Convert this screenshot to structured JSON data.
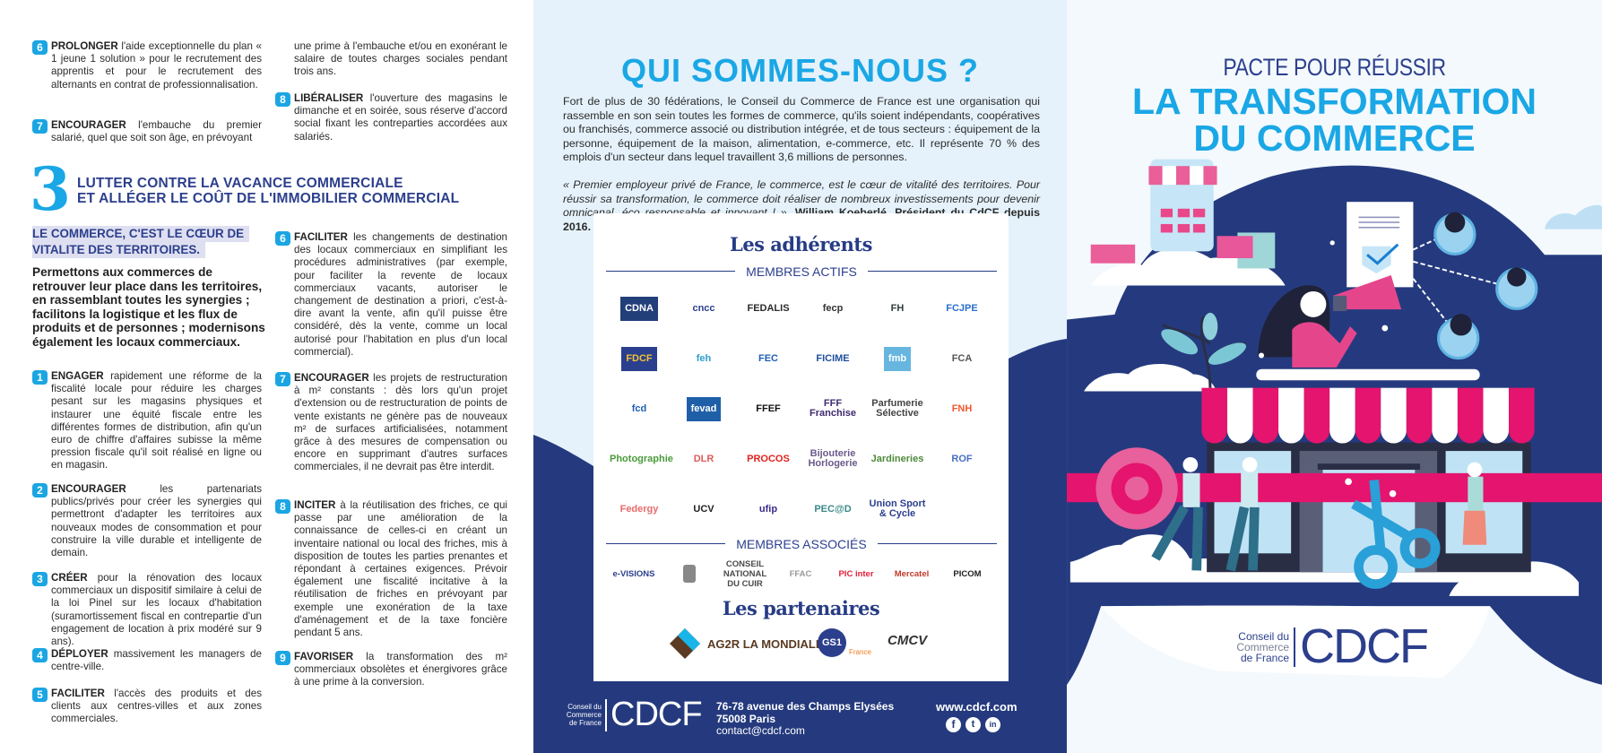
{
  "left_page": {
    "top_left_items": [
      {
        "num": "6",
        "verb": "PROLONGER",
        "text": "l'aide exceptionnelle du plan « 1 jeune 1 solution » pour le recrutement des apprentis et pour le recrutement des alternants en contrat de professionnalisation."
      },
      {
        "num": "7",
        "verb": "ENCOURAGER",
        "text": "l'embauche du premier salarié, quel que soit son âge, en prévoyant"
      }
    ],
    "top_right_continuation": "une prime à l'embauche et/ou en exonérant le salaire de toutes charges sociales pendant trois ans.",
    "top_right_items": [
      {
        "num": "8",
        "verb": "LIBÉRALISER",
        "text": "l'ouverture des magasins le dimanche et en soirée, sous réserve d'accord social fixant les contreparties accordées aux salariés."
      }
    ],
    "section3": {
      "number": "3",
      "title_line1": "LUTTER CONTRE LA VACANCE COMMERCIALE",
      "title_line2": "ET ALLÉGER LE COÛT DE L'IMMOBILIER COMMERCIAL",
      "highlight_line1": "LE COMMERCE, C'EST LE CŒUR DE",
      "highlight_line2": "VITALITE DES TERRITOIRES.",
      "lead": "Permettons aux commerces de retrouver leur place dans les territoires, en rassemblant toutes les synergies ; facilitons la logistique et les flux de produits et de personnes ; modernisons également les locaux commerciaux.",
      "left_items": [
        {
          "num": "1",
          "verb": "ENGAGER",
          "text": "rapidement une réforme de la fiscalité locale pour réduire les charges pesant sur les magasins physiques et instaurer une équité fiscale entre les différentes formes de distribution, afin qu'un euro de chiffre d'affaires subisse la même pression fiscale qu'il soit réalisé en ligne ou en magasin."
        },
        {
          "num": "2",
          "verb": "ENCOURAGER",
          "text": "les partenariats publics/privés pour créer les synergies qui permettront d'adapter les territoires aux nouveaux modes de consommation et pour construire la ville durable et intelligente de demain."
        },
        {
          "num": "3",
          "verb": "CRÉER",
          "text": "pour la rénovation des locaux commerciaux un dispositif similaire à celui de la loi Pinel sur les locaux d'habitation (suramortissement fiscal en contrepartie d'un engagement de location à prix modéré sur 9 ans)."
        },
        {
          "num": "4",
          "verb": "DÉPLOYER",
          "text": "massivement les managers de centre-ville."
        },
        {
          "num": "5",
          "verb": "FACILITER",
          "text": "l'accès des produits et des clients aux centres-villes et aux zones commerciales."
        }
      ],
      "right_items": [
        {
          "num": "6",
          "verb": "FACILITER",
          "text": "les changements de destination des locaux commerciaux en simplifiant les procédures administratives (par exemple, pour faciliter la revente de locaux commerciaux vacants, autoriser le changement de destination a priori, c'est-à-dire avant la vente, afin qu'il puisse être considéré, dès la vente, comme un local autorisé pour l'habitation en plus d'un local commercial)."
        },
        {
          "num": "7",
          "verb": "ENCOURAGER",
          "text": "les projets de restructuration à m² constants : dès lors qu'un projet d'extension ou de restructuration de points de vente existants ne génère pas de nouveaux m² de surfaces artificialisées, notamment grâce à des mesures de compensation ou encore en supprimant d'autres surfaces commerciales, il ne devrait pas être interdit."
        },
        {
          "num": "8",
          "verb": "INCITER",
          "text": "à la réutilisation des friches, ce qui passe par une amélioration de la connaissance de celles-ci en créant un inventaire national ou local des friches, mis à disposition de toutes les parties prenantes et répondant à certaines exigences. Prévoir également une fiscalité incitative à la réutilisation de friches en prévoyant par exemple une exonération de la taxe d'aménagement et de la taxe foncière pendant 5 ans."
        },
        {
          "num": "9",
          "verb": "FAVORISER",
          "text": "la transformation des m² commerciaux obsolètes et énergivores grâce à une prime à la conversion."
        }
      ]
    }
  },
  "middle": {
    "title": "QUI SOMMES-NOUS ?",
    "paragraph": "Fort de plus de 30 fédérations, le Conseil du Commerce de France est une organisation qui rassemble en son sein toutes les formes de commerce, qu'ils soient indépendants, coopératives ou franchisés, commerce associé ou distribution intégrée, et de tous secteurs : équipement de la personne, équipement de la maison, alimentation, e-commerce, etc. Il représente 70 % des emplois d'un secteur dans lequel travaillent 3,6 millions de personnes.",
    "quote": "« Premier employeur privé de France, le commerce, est le cœur de vitalité des territoires. Pour réussir sa transformation, le commerce doit réaliser de nombreux investissements pour devenir omnicanal, éco responsable et innovant ! »,",
    "quote_author": "William Koeberlé, Président du CdCF depuis 2016.",
    "members_title": "Les adhérents",
    "active_label": "MEMBRES ACTIFS",
    "active_members": [
      {
        "name": "CDNA",
        "color": "#ffffff",
        "bg": "#233f7a"
      },
      {
        "name": "cncc",
        "color": "#2c3f8d",
        "bg": ""
      },
      {
        "name": "FEDALIS",
        "color": "#2b2b2b",
        "bg": ""
      },
      {
        "name": "fecp",
        "color": "#333333",
        "bg": ""
      },
      {
        "name": "FH",
        "color": "#2d3e3e",
        "bg": ""
      },
      {
        "name": "FCJPE",
        "color": "#2a6fd1",
        "bg": ""
      },
      {
        "name": "FDCF",
        "color": "#f1c232",
        "bg": "#2b3f8f"
      },
      {
        "name": "feh",
        "color": "#2c9fcf",
        "bg": ""
      },
      {
        "name": "FEC",
        "color": "#1f5fb3",
        "bg": ""
      },
      {
        "name": "FICIME",
        "color": "#1f4f9b",
        "bg": ""
      },
      {
        "name": "fmb",
        "color": "#ffffff",
        "bg": "#67b6e0"
      },
      {
        "name": "FCA",
        "color": "#555555",
        "bg": ""
      },
      {
        "name": "fcd",
        "color": "#1f5fb3",
        "bg": ""
      },
      {
        "name": "fevad",
        "color": "#ffffff",
        "bg": "#1f5fa8"
      },
      {
        "name": "FFEF",
        "color": "#111111",
        "bg": ""
      },
      {
        "name": "FFF Franchise",
        "color": "#3d2a6d",
        "bg": ""
      },
      {
        "name": "Parfumerie Sélective",
        "color": "#444444",
        "bg": ""
      },
      {
        "name": "FNH",
        "color": "#f0562e",
        "bg": ""
      },
      {
        "name": "Photographie",
        "color": "#4a9a3a",
        "bg": ""
      },
      {
        "name": "DLR",
        "color": "#e05a5a",
        "bg": ""
      },
      {
        "name": "PROCOS",
        "color": "#e0231d",
        "bg": ""
      },
      {
        "name": "Bijouterie Horlogerie",
        "color": "#6a5a8a",
        "bg": ""
      },
      {
        "name": "Jardineries",
        "color": "#4e8a3a",
        "bg": ""
      },
      {
        "name": "ROF",
        "color": "#4a6fc4",
        "bg": ""
      },
      {
        "name": "Federgy",
        "color": "#e86a6a",
        "bg": ""
      },
      {
        "name": "UCV",
        "color": "#222222",
        "bg": ""
      },
      {
        "name": "ufip",
        "color": "#3b2a8a",
        "bg": ""
      },
      {
        "name": "PEC@D",
        "color": "#3c8a8a",
        "bg": ""
      },
      {
        "name": "Union Sport & Cycle",
        "color": "#2c3f8d",
        "bg": ""
      }
    ],
    "associate_label": "MEMBRES ASSOCIÉS",
    "associate_members": [
      {
        "name": "e-VISIONS",
        "color": "#2c3f8d"
      },
      {
        "name": "",
        "color": "#555555"
      },
      {
        "name": "CONSEIL NATIONAL DU CUIR",
        "color": "#4a4a4a"
      },
      {
        "name": "FFAC",
        "color": "#999999"
      },
      {
        "name": "PIC inter",
        "color": "#e0203a"
      },
      {
        "name": "Mercatel",
        "color": "#c0392b"
      },
      {
        "name": "PICOM",
        "color": "#222222"
      }
    ],
    "partners_title": "Les partenaires",
    "partners": [
      {
        "name": "AG2R LA MONDIALE",
        "color": "#5a3a22"
      },
      {
        "name": "GS1",
        "sub": "France",
        "color": "#2c3f8d"
      },
      {
        "name": "CMCV",
        "color": "#333333"
      }
    ],
    "footer": {
      "org_lines": [
        "Conseil du",
        "Commerce",
        "de France"
      ],
      "logo": "CDCF",
      "address1": "76-78 avenue des Champs Elysées",
      "address2": "75008 Paris",
      "email": "contact@cdcf.com",
      "website": "www.cdcf.com",
      "social": [
        "facebook-icon",
        "twitter-icon",
        "linkedin-icon"
      ]
    }
  },
  "cover": {
    "pretitle": "PACTE POUR RÉUSSIR",
    "title_line1": "LA TRANSFORMATION",
    "title_line2": "DU COMMERCE",
    "logo_org_lines": [
      "Conseil du",
      "Commerce",
      "de France"
    ],
    "logo": "CDCF"
  },
  "colors": {
    "navy": "#253a7e",
    "accent_blue": "#1aa7e5",
    "pink": "#e5146e",
    "panel_bg": "#e5f2fb"
  }
}
